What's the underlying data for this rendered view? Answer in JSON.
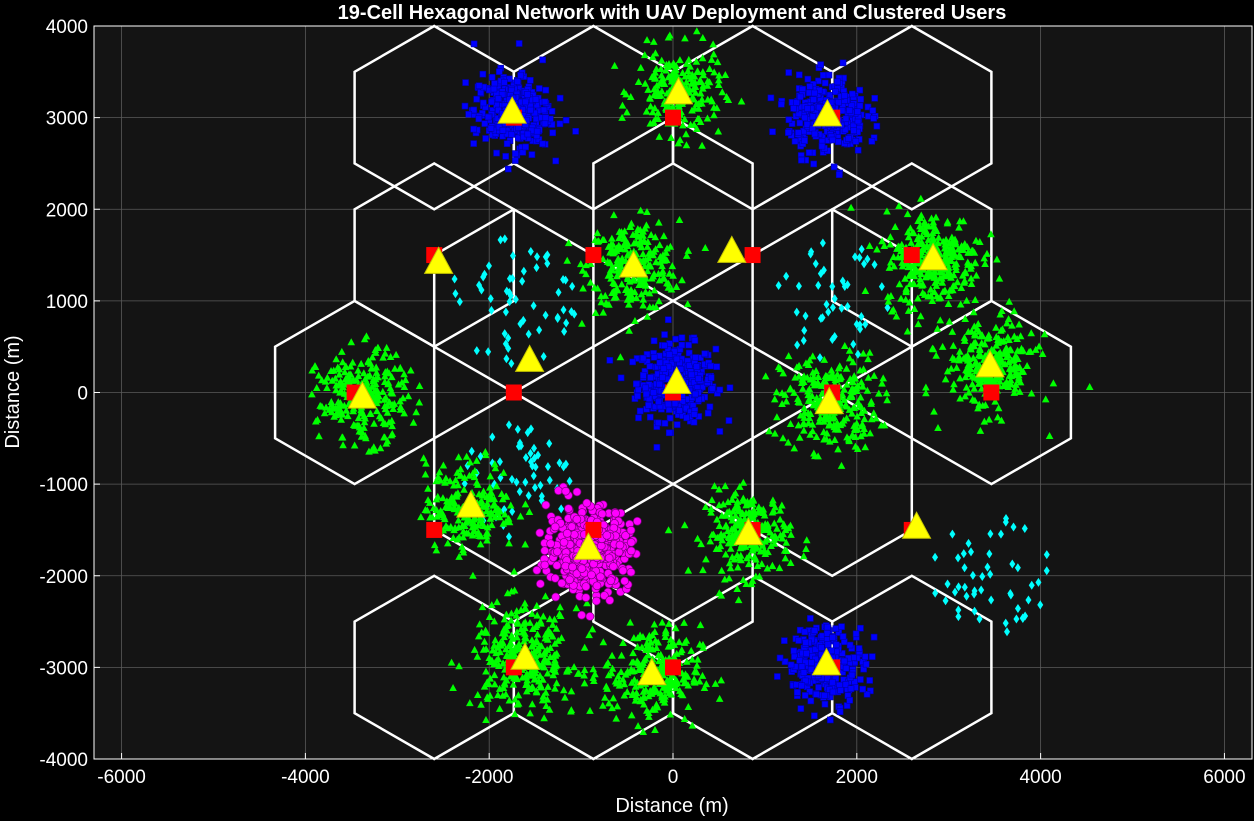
{
  "chart_data": {
    "type": "scatter",
    "title": "19-Cell Hexagonal Network with UAV Deployment and Clustered Users",
    "xlabel": "Distance (m)",
    "ylabel": "Distance (m)",
    "xlim": [
      -6300,
      6300
    ],
    "ylim": [
      -4000,
      4000
    ],
    "xticks": [
      -6000,
      -4000,
      -2000,
      0,
      2000,
      4000,
      6000
    ],
    "yticks": [
      -4000,
      -3000,
      -2000,
      -1000,
      0,
      1000,
      2000,
      3000,
      4000
    ],
    "x_tick_labels": [
      "-6000",
      "-4000",
      "-2000",
      "0",
      "2000",
      "4000",
      "6000"
    ],
    "y_tick_labels": [
      "-4000",
      "-3000",
      "-2000",
      "-1000",
      "0",
      "1000",
      "2000",
      "3000",
      "4000"
    ],
    "grid": true,
    "background": "#141414",
    "hex_radius": 1000,
    "colors": {
      "hex_edge": "#ffffff",
      "base_station": "#ff0000",
      "uav": "#ffff00",
      "dense_square": "#0000ff",
      "medium_triangle": "#00ff00",
      "sparse_diamond": "#00ffff",
      "hotspot_circle": "#ff00ff",
      "grid": "#5a5a5a"
    },
    "cells": [
      {
        "center": [
          0,
          0
        ],
        "bs": [
          0,
          0
        ],
        "uav": [
          40,
          110
        ],
        "users": {
          "type": "square",
          "n": 380,
          "spread": 380
        }
      },
      {
        "center": [
          1732,
          1000
        ],
        "bs": [
          866,
          1500
        ],
        "uav": [
          640,
          1540
        ],
        "users": {
          "type": "diamond",
          "n": 45,
          "spread": 650
        }
      },
      {
        "center": [
          -1732,
          1000
        ],
        "bs": [
          -2598,
          1500
        ],
        "uav": [
          -2550,
          1420
        ],
        "users": {
          "type": "diamond",
          "n": 55,
          "spread": 700
        }
      },
      {
        "center": [
          0,
          2000
        ],
        "bs": [
          -866,
          1500
        ],
        "uav": [
          -430,
          1380
        ],
        "users": {
          "type": "triangle",
          "n": 260,
          "spread": 450
        }
      },
      {
        "center": [
          1732,
          -1000
        ],
        "bs": [
          1732,
          0
        ],
        "uav": [
          1700,
          -110
        ],
        "users": {
          "type": "triangle",
          "n": 260,
          "spread": 480
        }
      },
      {
        "center": [
          -1732,
          -1000
        ],
        "bs": [
          -1732,
          0
        ],
        "uav": [
          -1560,
          350
        ],
        "users": {
          "type": "diamond",
          "n": 60,
          "spread": 650
        }
      },
      {
        "center": [
          0,
          -2000
        ],
        "bs": [
          866,
          -1500
        ],
        "uav": [
          820,
          -1540
        ],
        "users": {
          "type": "triangle",
          "n": 240,
          "spread": 420
        }
      },
      {
        "center": [
          0,
          4000
        ],
        "bs": [
          0,
          3000
        ],
        "uav": [
          60,
          3270
        ],
        "users": {
          "type": "triangle",
          "n": 220,
          "spread": 420
        }
      },
      {
        "center": [
          0,
          -4000
        ],
        "bs": [
          0,
          -3000
        ],
        "uav": [
          -230,
          -3070
        ],
        "users": {
          "type": "triangle",
          "n": 240,
          "spread": 480
        }
      },
      {
        "center": [
          3464,
          2000
        ],
        "bs": [
          2598,
          1500
        ],
        "uav": [
          2830,
          1460
        ],
        "users": {
          "type": "triangle",
          "n": 300,
          "spread": 480
        }
      },
      {
        "center": [
          -3464,
          2000
        ],
        "bs": [
          -1732,
          3000
        ],
        "uav": [
          -1750,
          3060
        ],
        "users": {
          "type": "square",
          "n": 320,
          "spread": 380
        }
      },
      {
        "center": [
          3464,
          -2000
        ],
        "bs": [
          2598,
          -1500
        ],
        "uav": [
          2650,
          -1470
        ],
        "users": {
          "type": "diamond",
          "n": 50,
          "spread": 650
        }
      },
      {
        "center": [
          -3464,
          -2000
        ],
        "bs": [
          -2598,
          -1500
        ],
        "uav": [
          -2200,
          -1240
        ],
        "users": {
          "type": "triangle",
          "n": 200,
          "spread": 450
        }
      },
      {
        "center": [
          1732,
          3000
        ],
        "bs": [
          1732,
          3000
        ],
        "uav": [
          1680,
          3030
        ],
        "users": {
          "type": "square",
          "n": 300,
          "spread": 380
        }
      },
      {
        "center": [
          -1732,
          -3000
        ],
        "bs": [
          -1732,
          -3000
        ],
        "uav": [
          -1610,
          -2900
        ],
        "users": {
          "type": "triangle",
          "n": 300,
          "spread": 520
        }
      },
      {
        "center": [
          3464,
          0
        ],
        "bs": [
          3464,
          0
        ],
        "uav": [
          3450,
          290
        ],
        "users": {
          "type": "triangle",
          "n": 260,
          "spread": 460
        }
      },
      {
        "center": [
          -3464,
          0
        ],
        "bs": [
          -3464,
          0
        ],
        "uav": [
          -3380,
          -50
        ],
        "users": {
          "type": "triangle",
          "n": 260,
          "spread": 440
        }
      },
      {
        "center": [
          1732,
          -3000
        ],
        "bs": [
          1732,
          -3000
        ],
        "uav": [
          1670,
          -2960
        ],
        "users": {
          "type": "square",
          "n": 300,
          "spread": 380
        }
      },
      {
        "center": [
          -866,
          -1500
        ],
        "bs": [
          -866,
          -1500
        ],
        "uav": [
          -920,
          -1700
        ],
        "users": {
          "type": "circle",
          "n": 520,
          "spread": 400
        }
      }
    ],
    "hexagons": [
      [
        0,
        0
      ],
      [
        1732,
        1000
      ],
      [
        -1732,
        1000
      ],
      [
        0,
        2000
      ],
      [
        1732,
        -1000
      ],
      [
        -1732,
        -1000
      ],
      [
        0,
        -2000
      ],
      [
        866,
        3000
      ],
      [
        -866,
        3000
      ],
      [
        2598,
        3000
      ],
      [
        -2598,
        3000
      ],
      [
        3464,
        0
      ],
      [
        -3464,
        0
      ],
      [
        2598,
        -3000
      ],
      [
        -2598,
        -3000
      ],
      [
        866,
        -3000
      ],
      [
        -866,
        -3000
      ],
      [
        2598,
        1500
      ],
      [
        -2598,
        1500
      ]
    ]
  }
}
